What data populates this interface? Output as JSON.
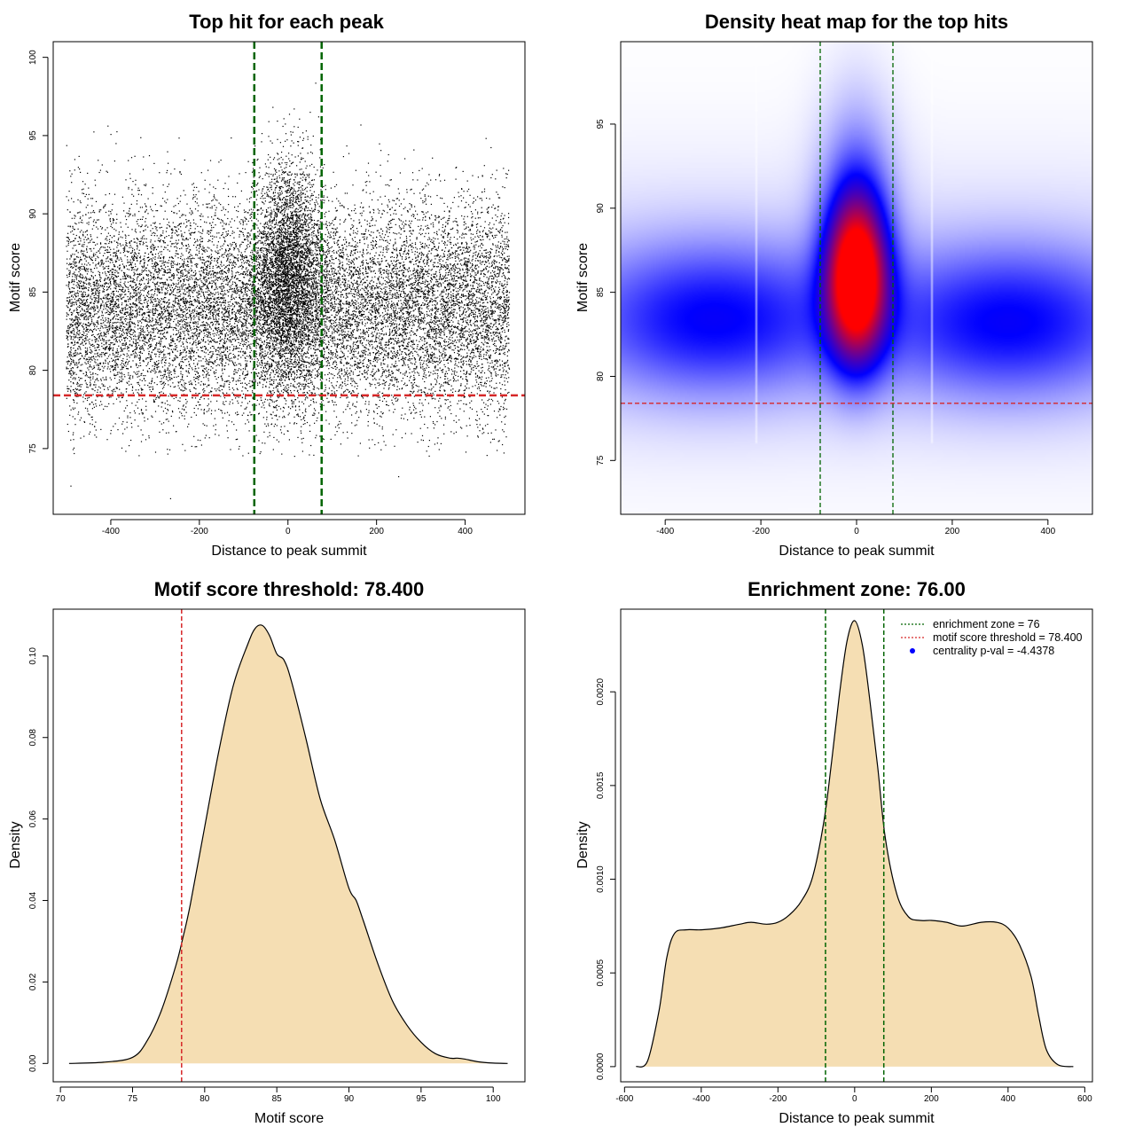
{
  "chart_data": [
    {
      "id": "p1",
      "type": "scatter",
      "title": "Top hit for each peak",
      "xlabel": "Distance to peak summit",
      "ylabel": "Motif score",
      "xlim": [
        -530,
        535
      ],
      "ylim": [
        70.8,
        101
      ],
      "xticks": [
        -400,
        -200,
        0,
        200,
        400
      ],
      "xtick_labels": [
        "-400",
        "-200",
        "0",
        "200",
        "400"
      ],
      "yticks": [
        75,
        80,
        85,
        90,
        95,
        100
      ],
      "ytick_labels": [
        "75",
        "80",
        "85",
        "90",
        "95",
        "100"
      ],
      "vlines": [
        -76,
        76
      ],
      "hlines": [
        78.4
      ],
      "colors": {
        "points": "#000000",
        "vline": "#006400",
        "hline": "#d62728"
      },
      "n_points_approx": 20000,
      "x_range": [
        -500,
        500
      ],
      "background_dist": {
        "mean": 84.0,
        "sd": 3.4
      },
      "central_dist": {
        "mean": 86.0,
        "sd": 3.6,
        "x_sd": 38
      },
      "central_fraction": 0.2,
      "outliers": [
        [
          -490,
          72.6
        ],
        [
          -265,
          71.8
        ],
        [
          250,
          73.2
        ]
      ]
    },
    {
      "id": "p2",
      "type": "heatmap",
      "title": "Density heat map for the top hits",
      "xlabel": "Distance to peak summit",
      "ylabel": "Motif score",
      "xlim": [
        -493,
        493
      ],
      "ylim": [
        71.8,
        99.9
      ],
      "xticks": [
        -400,
        -200,
        0,
        200,
        400
      ],
      "xtick_labels": [
        "-400",
        "-200",
        "0",
        "200",
        "400"
      ],
      "yticks": [
        75,
        80,
        85,
        90,
        95
      ],
      "ytick_labels": [
        "75",
        "80",
        "85",
        "90",
        "95"
      ],
      "vlines": [
        -76,
        76
      ],
      "hlines": [
        78.4
      ],
      "colors": {
        "low": "#ffffff",
        "mid": "#0000ff",
        "high": "#ff0000",
        "vline": "#006400",
        "hline": "#d62728"
      },
      "components": [
        {
          "x": 0,
          "y": 85.8,
          "sx": 42,
          "sy": 3.2,
          "w": 1.0
        },
        {
          "x": 0,
          "y": 90.5,
          "sx": 55,
          "sy": 4.5,
          "w": 0.18
        },
        {
          "x": -300,
          "y": 83.4,
          "sx": 190,
          "sy": 3.1,
          "w": 0.3
        },
        {
          "x": 320,
          "y": 83.2,
          "sx": 190,
          "sy": 3.1,
          "w": 0.3
        }
      ],
      "white_lines_x": [
        -213,
        154
      ]
    },
    {
      "id": "p3",
      "type": "area",
      "title": "Motif score threshold: 78.400",
      "xlabel": "Motif score",
      "ylabel": "Density",
      "xlim": [
        69.5,
        102.2
      ],
      "ylim": [
        -0.0045,
        0.1115
      ],
      "xticks": [
        70,
        75,
        80,
        85,
        90,
        95,
        100
      ],
      "xtick_labels": [
        "70",
        "75",
        "80",
        "85",
        "90",
        "95",
        "100"
      ],
      "yticks": [
        0.0,
        0.02,
        0.04,
        0.06,
        0.08,
        0.1
      ],
      "ytick_labels": [
        "0.00",
        "0.02",
        "0.04",
        "0.06",
        "0.08",
        "0.10"
      ],
      "vlines": [
        78.4
      ],
      "colors": {
        "fill": "#f5deb3",
        "line": "#000000",
        "vline": "#d62728"
      },
      "x": [
        70.6,
        73,
        75,
        76,
        77,
        78,
        78.5,
        79,
        80,
        81,
        82,
        83,
        83.5,
        84,
        84.5,
        85,
        85.5,
        86,
        87,
        88,
        89,
        90,
        90.5,
        91,
        92,
        93,
        94,
        95,
        96,
        97,
        97.5,
        98,
        99,
        100,
        101
      ],
      "y": [
        0.0,
        0.0003,
        0.0015,
        0.0055,
        0.013,
        0.024,
        0.031,
        0.039,
        0.058,
        0.077,
        0.093,
        0.103,
        0.1068,
        0.1075,
        0.105,
        0.1005,
        0.099,
        0.094,
        0.08,
        0.065,
        0.055,
        0.043,
        0.04,
        0.035,
        0.0245,
        0.0155,
        0.0095,
        0.0052,
        0.0024,
        0.0013,
        0.0013,
        0.0011,
        0.0004,
        0.0001,
        0.0
      ]
    },
    {
      "id": "p4",
      "type": "area",
      "title": "Enrichment zone: 76.00",
      "xlabel": "Distance to peak summit",
      "ylabel": "Density",
      "xlim": [
        -610,
        620
      ],
      "ylim": [
        -8.1e-05,
        0.002441
      ],
      "xticks": [
        -600,
        -400,
        -200,
        0,
        200,
        400,
        600
      ],
      "xtick_labels": [
        "-600",
        "-400",
        "-200",
        "0",
        "200",
        "400",
        "600"
      ],
      "yticks": [
        0.0,
        0.0005,
        0.001,
        0.0015,
        0.002
      ],
      "ytick_labels": [
        "0.0000",
        "0.0005",
        "0.0010",
        "0.0015",
        "0.0020"
      ],
      "vlines": [
        -76,
        76
      ],
      "colors": {
        "fill": "#f5deb3",
        "line": "#000000",
        "vline": "#006400"
      },
      "x": [
        -570,
        -540,
        -510,
        -490,
        -470,
        -440,
        -400,
        -350,
        -300,
        -270,
        -230,
        -200,
        -170,
        -140,
        -110,
        -80,
        -60,
        -40,
        -20,
        0,
        20,
        40,
        60,
        80,
        110,
        140,
        170,
        200,
        240,
        280,
        330,
        370,
        400,
        430,
        460,
        480,
        500,
        530,
        570
      ],
      "y": [
        0.0,
        3e-05,
        0.0003,
        0.00058,
        0.00071,
        0.00073,
        0.00073,
        0.00074,
        0.00076,
        0.00077,
        0.00076,
        0.00077,
        0.00081,
        0.00088,
        0.00101,
        0.00131,
        0.00163,
        0.00198,
        0.00227,
        0.00238,
        0.00225,
        0.00195,
        0.0016,
        0.00122,
        0.00092,
        0.0008,
        0.00078,
        0.00078,
        0.00077,
        0.00075,
        0.00077,
        0.00077,
        0.00074,
        0.00065,
        0.00048,
        0.00027,
        9e-05,
        1e-05,
        0.0
      ]
    }
  ],
  "legend": {
    "items": [
      {
        "label": "enrichment zone = 76",
        "color": "#006400",
        "style": "dotted-line"
      },
      {
        "label": "motif score threshold = 78.400",
        "color": "#d62728",
        "style": "dotted-line"
      },
      {
        "label": "centrality p-val = -4.4378",
        "color": "#0000ff",
        "style": "dot"
      }
    ],
    "placement": "top-right"
  }
}
